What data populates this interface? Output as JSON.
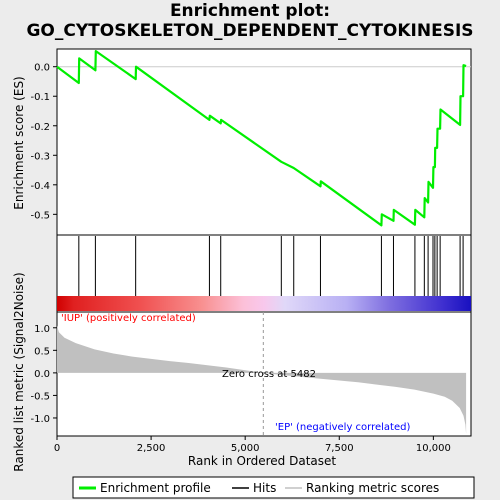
{
  "title_lines": [
    "Enrichment plot:",
    "GO_CYTOSKELETON_DEPENDENT_CYTOKINESIS"
  ],
  "chart_data": {
    "type": "line",
    "title": "Enrichment plot: GO_CYTOSKELETON_DEPENDENT_CYTOKINESIS",
    "xlabel": "Rank in Ordered Dataset",
    "xlim": [
      0,
      11000
    ],
    "x_ticks": [
      0,
      2500,
      5000,
      7500,
      10000
    ],
    "x_tick_labels": [
      "0",
      "2,500",
      "5,000",
      "7,500",
      "10,000"
    ],
    "es_panel": {
      "ylabel": "Enrichment score (ES)",
      "ylim": [
        -0.57,
        0.06
      ],
      "y_ticks": [
        0.0,
        -0.1,
        -0.2,
        -0.3,
        -0.4,
        -0.5
      ],
      "y_tick_labels": [
        "0.0",
        "-0.1",
        "-0.2",
        "-0.3",
        "-0.4",
        "-0.5"
      ],
      "series": [
        {
          "name": "Enrichment profile",
          "color": "#00ee00",
          "points": [
            [
              0,
              0.0
            ],
            [
              580,
              -0.055
            ],
            [
              590,
              0.028
            ],
            [
              1020,
              -0.012
            ],
            [
              1030,
              0.053
            ],
            [
              2090,
              -0.042
            ],
            [
              2100,
              0.0
            ],
            [
              4050,
              -0.18
            ],
            [
              4060,
              -0.166
            ],
            [
              4350,
              -0.192
            ],
            [
              4360,
              -0.18
            ],
            [
              5960,
              -0.322
            ],
            [
              6290,
              -0.343
            ],
            [
              7000,
              -0.405
            ],
            [
              7010,
              -0.388
            ],
            [
              8620,
              -0.537
            ],
            [
              8630,
              -0.5
            ],
            [
              8940,
              -0.522
            ],
            [
              8950,
              -0.485
            ],
            [
              9510,
              -0.535
            ],
            [
              9520,
              -0.485
            ],
            [
              9760,
              -0.51
            ],
            [
              9770,
              -0.445
            ],
            [
              9860,
              -0.46
            ],
            [
              9870,
              -0.39
            ],
            [
              9990,
              -0.41
            ],
            [
              10000,
              -0.34
            ],
            [
              10040,
              -0.34
            ],
            [
              10050,
              -0.275
            ],
            [
              10100,
              -0.275
            ],
            [
              10110,
              -0.21
            ],
            [
              10180,
              -0.21
            ],
            [
              10190,
              -0.145
            ],
            [
              10710,
              -0.197
            ],
            [
              10720,
              -0.1
            ],
            [
              10790,
              -0.1
            ],
            [
              10800,
              0.005
            ],
            [
              10870,
              0.002
            ]
          ]
        }
      ],
      "hits": [
        580,
        1020,
        2090,
        4050,
        4350,
        5960,
        6290,
        7000,
        8620,
        8940,
        9510,
        9760,
        9860,
        9990,
        10040,
        10100,
        10180,
        10710,
        10790
      ]
    },
    "metric_panel": {
      "ylabel": "Ranked list metric (Signal2Noise)",
      "ylim": [
        -1.4,
        1.35
      ],
      "y_ticks": [
        1.0,
        0.5,
        0.0,
        -0.5,
        -1.0
      ],
      "y_tick_labels": [
        "1.0",
        "0.5",
        "0.0",
        "-0.5",
        "-1.0"
      ],
      "metric_curve": [
        [
          0,
          1.05
        ],
        [
          50,
          0.9
        ],
        [
          200,
          0.78
        ],
        [
          500,
          0.66
        ],
        [
          1000,
          0.52
        ],
        [
          1500,
          0.43
        ],
        [
          2000,
          0.36
        ],
        [
          2500,
          0.31
        ],
        [
          3000,
          0.26
        ],
        [
          3500,
          0.22
        ],
        [
          4000,
          0.17
        ],
        [
          4500,
          0.12
        ],
        [
          5000,
          0.06
        ],
        [
          5482,
          0.0
        ],
        [
          6000,
          -0.05
        ],
        [
          6500,
          -0.09
        ],
        [
          7000,
          -0.13
        ],
        [
          7500,
          -0.17
        ],
        [
          8000,
          -0.21
        ],
        [
          8500,
          -0.26
        ],
        [
          9000,
          -0.31
        ],
        [
          9500,
          -0.37
        ],
        [
          10000,
          -0.46
        ],
        [
          10300,
          -0.53
        ],
        [
          10500,
          -0.62
        ],
        [
          10700,
          -0.78
        ],
        [
          10800,
          -0.95
        ],
        [
          10850,
          -1.15
        ],
        [
          10870,
          -1.35
        ]
      ],
      "zero_cross_label": "Zero cross at 5482",
      "zero_cross_x": 5482,
      "pos_label": "'IUP' (positively correlated)",
      "neg_label": "'EP' (negatively correlated)"
    },
    "legend": {
      "placement": "bottom",
      "entries": [
        {
          "label": "Enrichment profile",
          "color": "#00ee00"
        },
        {
          "label": "Hits",
          "color": "#000000"
        },
        {
          "label": "Ranking metric scores",
          "color": "#c0c0c0"
        }
      ]
    },
    "colors": {
      "pos_label": "#ff0000",
      "neg_label": "#0000ff",
      "metric_fill": "#c0c0c0"
    }
  }
}
